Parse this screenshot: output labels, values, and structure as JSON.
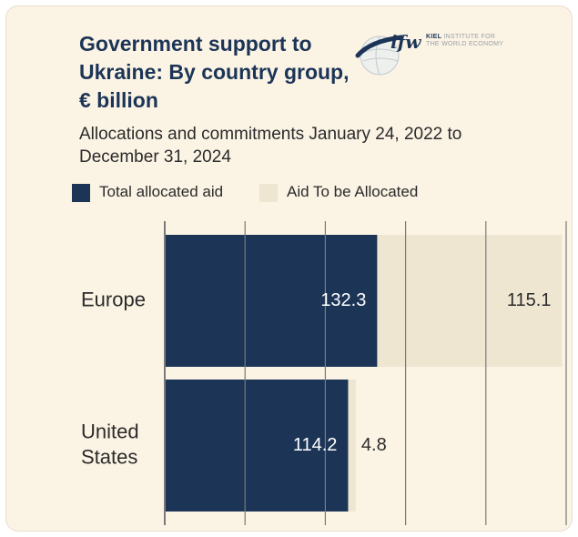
{
  "header": {
    "title": "Government support to Ukraine: By country group, € billion",
    "subtitle": "Allocations and commitments January 24, 2022 to December 31, 2024"
  },
  "logo": {
    "brand": "ifw",
    "line1": "KIEL INSTITUTE FOR",
    "line1_strong": "KIEL",
    "line1_rest": " INSTITUTE FOR",
    "line2": "THE WORLD ECONOMY"
  },
  "legend": [
    {
      "label": "Total allocated aid",
      "color": "#1c3557"
    },
    {
      "label": "Aid To be Allocated",
      "color": "#efe6d2"
    }
  ],
  "colors": {
    "allocated": "#1c3557",
    "to_be_allocated": "#efe6d2",
    "grid": "#7a7a7a",
    "text": "#2b2b2b",
    "label_on_bar": "#ffffff"
  },
  "chart_data": {
    "type": "bar",
    "orientation": "horizontal",
    "stacked": true,
    "title": "Government support to Ukraine: By country group, € billion",
    "subtitle": "Allocations and commitments January 24, 2022 to December 31, 2024",
    "categories": [
      "Europe",
      "United States"
    ],
    "series": [
      {
        "name": "Total allocated aid",
        "values": [
          132.3,
          114.2
        ]
      },
      {
        "name": "Aid To be Allocated",
        "values": [
          115.1,
          4.8
        ]
      }
    ],
    "xlim": [
      0,
      250
    ],
    "grid": true,
    "gridlines": [
      0,
      50,
      100,
      150,
      200,
      250
    ],
    "legend": "top-left"
  }
}
